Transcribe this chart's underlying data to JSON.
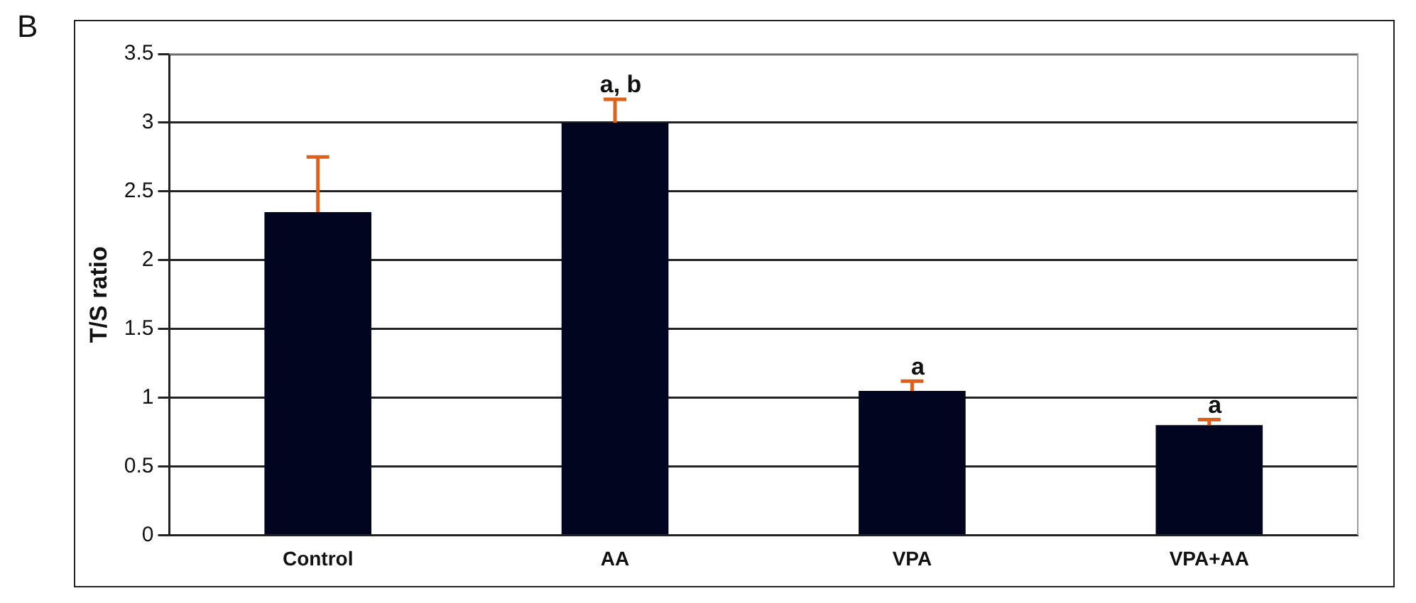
{
  "chart_data": {
    "type": "bar",
    "ylabel": "T/S ratio",
    "categories": [
      "Control",
      "AA",
      "VPA",
      "VPA+AA"
    ],
    "values": [
      2.35,
      3.0,
      1.05,
      0.8
    ],
    "color": "#020520",
    "errors": [
      [
        2.35,
        2.75
      ],
      [
        3.0,
        3.17
      ],
      [
        1.05,
        1.12
      ],
      [
        0.8,
        0.84
      ]
    ],
    "ylim": [
      0,
      3.5
    ],
    "yticks": [
      0,
      0.5,
      1,
      1.5,
      2,
      2.5,
      3,
      3.5
    ],
    "grid": "y",
    "legend": false,
    "annotations": [
      "B",
      "a, b",
      "a",
      "a"
    ]
  }
}
